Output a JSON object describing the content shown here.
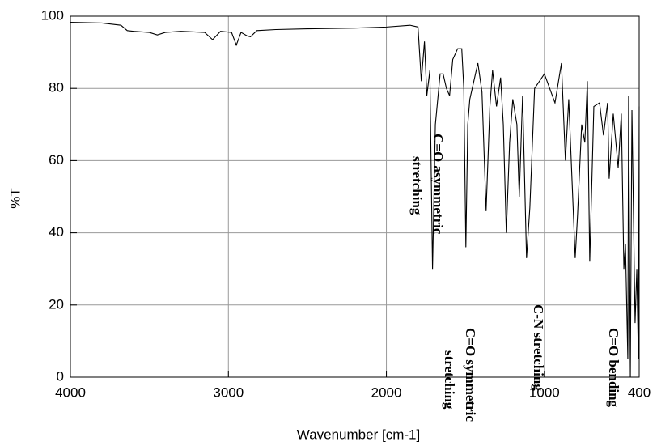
{
  "chart_data": {
    "type": "line",
    "x_label": "Wavenumber [cm-1]",
    "y_label": "%T",
    "x": [
      4000,
      3800,
      3680,
      3640,
      3600,
      3500,
      3450,
      3400,
      3300,
      3150,
      3100,
      3050,
      2980,
      2950,
      2920,
      2880,
      2860,
      2820,
      2700,
      2500,
      2200,
      2000,
      1850,
      1800,
      1779,
      1759,
      1744,
      1725,
      1708,
      1690,
      1660,
      1641,
      1620,
      1600,
      1580,
      1549,
      1523,
      1510,
      1497,
      1485,
      1472,
      1421,
      1395,
      1369,
      1345,
      1328,
      1303,
      1277,
      1260,
      1241,
      1220,
      1200,
      1174,
      1159,
      1138,
      1113,
      1092,
      1062,
      1000,
      933,
      892,
      867,
      846,
      805,
      790,
      764,
      744,
      728,
      713,
      687,
      651,
      626,
      600,
      590,
      564,
      533,
      513,
      497,
      487,
      472,
      467,
      456,
      446,
      426,
      415,
      405,
      400
    ],
    "series": [
      {
        "color": "#000000",
        "values": [
          98.3,
          98.1,
          97.5,
          96,
          95.8,
          95.5,
          94.8,
          95.5,
          95.8,
          95.5,
          93.5,
          95.8,
          95.5,
          92,
          95.5,
          94.5,
          94.3,
          96,
          96.3,
          96.5,
          96.7,
          97,
          97.5,
          97,
          82,
          93,
          78,
          85,
          30,
          70,
          84,
          84,
          80,
          78,
          88,
          91,
          91,
          80,
          36,
          70,
          77,
          87,
          79,
          46,
          75,
          85,
          75,
          83,
          70,
          40,
          65,
          77,
          70,
          50,
          78,
          33,
          47,
          80,
          84,
          76,
          87,
          60,
          77,
          33,
          45,
          70,
          65,
          82,
          32,
          75,
          76,
          67,
          76,
          55,
          73,
          58,
          73,
          30,
          37,
          5,
          78,
          0,
          74,
          15,
          30,
          5,
          75
        ]
      }
    ],
    "xlim": [
      4000,
      400
    ],
    "xticks": [
      4000,
      3000,
      2000,
      1000,
      400
    ],
    "ylim": [
      0,
      100
    ],
    "yticks": [
      0,
      20,
      40,
      60,
      80,
      100
    ],
    "grid": true,
    "annotations": [
      {
        "lines": [
          "C=O asymmetric",
          "stretching"
        ]
      },
      {
        "lines": [
          "C=O symmetric",
          "stretching"
        ]
      },
      {
        "lines": [
          "C-N  stretching"
        ]
      },
      {
        "lines": [
          "C=O bending"
        ]
      }
    ]
  }
}
